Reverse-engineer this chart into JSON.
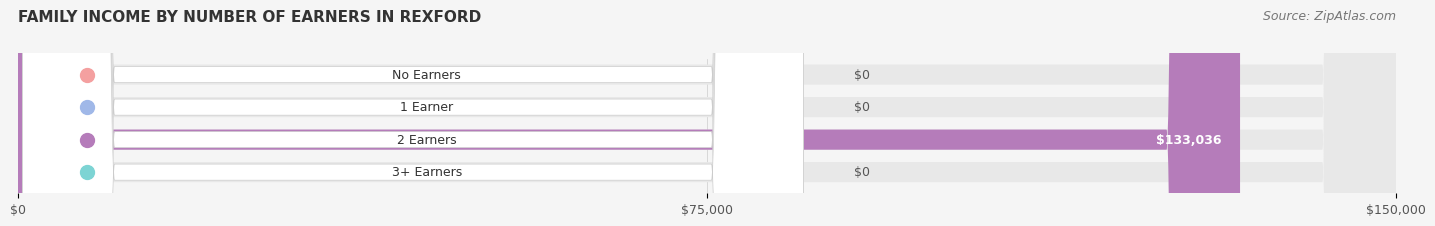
{
  "title": "FAMILY INCOME BY NUMBER OF EARNERS IN REXFORD",
  "source": "Source: ZipAtlas.com",
  "categories": [
    "No Earners",
    "1 Earner",
    "2 Earners",
    "3+ Earners"
  ],
  "values": [
    0,
    0,
    133036,
    0
  ],
  "bar_colors": [
    "#f4a0a0",
    "#a0b8e8",
    "#b57cba",
    "#7dd4d4"
  ],
  "value_labels": [
    "$0",
    "$0",
    "$133,036",
    "$0"
  ],
  "xlim": [
    0,
    150000
  ],
  "xticks": [
    0,
    75000,
    150000
  ],
  "xticklabels": [
    "$0",
    "$75,000",
    "$150,000"
  ],
  "bg_color": "#f5f5f5",
  "bar_bg_color": "#e8e8e8",
  "title_fontsize": 11,
  "source_fontsize": 9
}
